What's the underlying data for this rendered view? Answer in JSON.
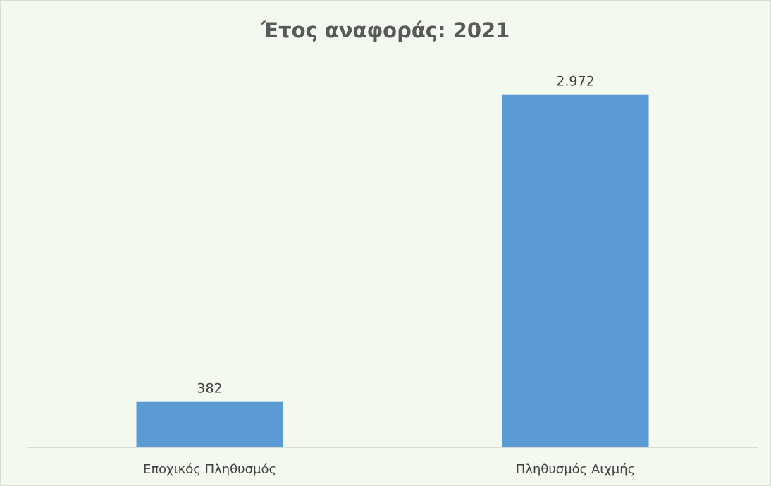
{
  "chart_data": {
    "type": "bar",
    "title": "Έτος αναφοράς: 2021",
    "categories": [
      "Εποχικός Πληθυσμός",
      "Πληθυσμός Αιχμής"
    ],
    "values": [
      382,
      2972
    ],
    "data_labels": [
      "382",
      "2.972"
    ],
    "xlabel": "",
    "ylabel": "",
    "ylim": [
      0,
      3000
    ],
    "grid": false,
    "legend": "none",
    "colors": {
      "bar": "#5b9bd5",
      "background": "#f3f9ef",
      "axis": "#d0d4cc",
      "title": "#595959"
    }
  }
}
